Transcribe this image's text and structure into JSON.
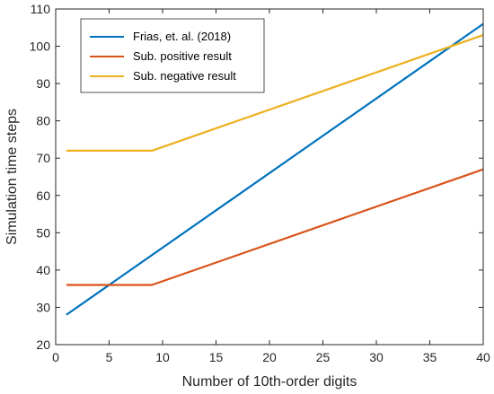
{
  "chart_data": {
    "type": "line",
    "xlabel": "Number of 10th-order digits",
    "ylabel": "Simulation time steps",
    "xlim": [
      0,
      40
    ],
    "ylim": [
      20,
      110
    ],
    "xticks": [
      0,
      5,
      10,
      15,
      20,
      25,
      30,
      35,
      40
    ],
    "yticks": [
      20,
      30,
      40,
      50,
      60,
      70,
      80,
      90,
      100,
      110
    ],
    "grid": false,
    "legend_position": "top-left",
    "series": [
      {
        "name": "Frias, et. al. (2018)",
        "color": "#0072BD",
        "x": [
          1,
          40
        ],
        "y": [
          28,
          106
        ]
      },
      {
        "name": "Sub. positive result",
        "color": "#D95319",
        "x": [
          1,
          9,
          40
        ],
        "y": [
          36,
          36,
          67
        ]
      },
      {
        "name": "Sub. negative result",
        "color": "#EDB120",
        "x": [
          1,
          9,
          40
        ],
        "y": [
          72,
          72,
          103
        ]
      }
    ]
  }
}
